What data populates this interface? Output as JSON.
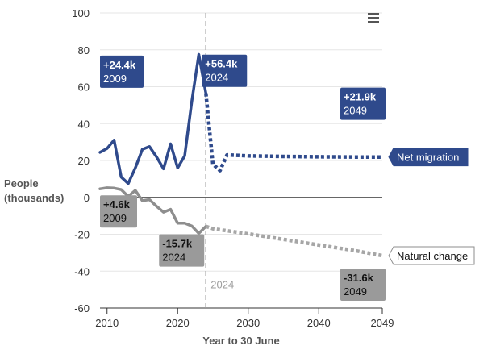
{
  "chart_data": {
    "type": "line",
    "ylabel": "People (thousands)",
    "ylabel_lines": [
      "People",
      "(thousands)"
    ],
    "xlabel": "Year to 30 June",
    "ylim": [
      -60,
      100
    ],
    "xlim": [
      2009,
      2049
    ],
    "y_ticks": [
      100,
      80,
      60,
      40,
      20,
      0,
      -20,
      -40,
      -60
    ],
    "x_ticks": [
      2010,
      2020,
      2030,
      2040,
      2049
    ],
    "reference_line": {
      "x": 2024,
      "label": "2024"
    },
    "series": [
      {
        "name": "Net migration",
        "color": "#2f4a8c",
        "historical": [
          [
            2009,
            24.4
          ],
          [
            2010,
            26.5
          ],
          [
            2011,
            31
          ],
          [
            2012,
            11
          ],
          [
            2013,
            7.5
          ],
          [
            2014,
            16
          ],
          [
            2015,
            26
          ],
          [
            2016,
            27.5
          ],
          [
            2017,
            22
          ],
          [
            2018,
            15.5
          ],
          [
            2019,
            29
          ],
          [
            2020,
            16
          ],
          [
            2021,
            22.5
          ],
          [
            2022,
            52
          ],
          [
            2023,
            77.5
          ],
          [
            2024,
            56.4
          ]
        ],
        "projection": [
          [
            2024,
            56.4
          ],
          [
            2025,
            18
          ],
          [
            2026,
            14.5
          ],
          [
            2027,
            23
          ],
          [
            2030,
            22.5
          ],
          [
            2035,
            22.2
          ],
          [
            2040,
            22
          ],
          [
            2045,
            21.9
          ],
          [
            2049,
            21.9
          ]
        ]
      },
      {
        "name": "Natural change",
        "color": "#8e8e8e",
        "projection_color": "#a6a6a6",
        "historical": [
          [
            2009,
            4.6
          ],
          [
            2010,
            5.2
          ],
          [
            2011,
            5
          ],
          [
            2012,
            4.2
          ],
          [
            2013,
            0.5
          ],
          [
            2014,
            3.8
          ],
          [
            2015,
            -1.8
          ],
          [
            2016,
            -1.2
          ],
          [
            2017,
            -4.8
          ],
          [
            2018,
            -8
          ],
          [
            2019,
            -6.5
          ],
          [
            2020,
            -14
          ],
          [
            2021,
            -14
          ],
          [
            2022,
            -15.5
          ],
          [
            2023,
            -19.5
          ],
          [
            2024,
            -15.7
          ]
        ],
        "projection": [
          [
            2024,
            -15.7
          ],
          [
            2025,
            -17
          ],
          [
            2030,
            -19.8
          ],
          [
            2035,
            -22.8
          ],
          [
            2040,
            -25.8
          ],
          [
            2045,
            -28.8
          ],
          [
            2049,
            -31.6
          ]
        ]
      }
    ],
    "annotations": [
      {
        "id": "nm2009",
        "x": 2009,
        "y": 24.4,
        "value": "+24.4k",
        "year": "2009",
        "series": "Net migration"
      },
      {
        "id": "nm2024",
        "x": 2024,
        "y": 56.4,
        "value": "+56.4k",
        "year": "2024",
        "series": "Net migration"
      },
      {
        "id": "nm2049",
        "x": 2049,
        "y": 21.9,
        "value": "+21.9k",
        "year": "2049",
        "series": "Net migration"
      },
      {
        "id": "nc2009",
        "x": 2009,
        "y": 4.6,
        "value": "+4.6k",
        "year": "2009",
        "series": "Natural change"
      },
      {
        "id": "nc2024",
        "x": 2024,
        "y": -15.7,
        "value": "-15.7k",
        "year": "2024",
        "series": "Natural change"
      },
      {
        "id": "nc2049",
        "x": 2049,
        "y": -31.6,
        "value": "-31.6k",
        "year": "2049",
        "series": "Natural change"
      }
    ]
  },
  "toolbar": {
    "menu_icon": "hamburger-menu-icon"
  }
}
